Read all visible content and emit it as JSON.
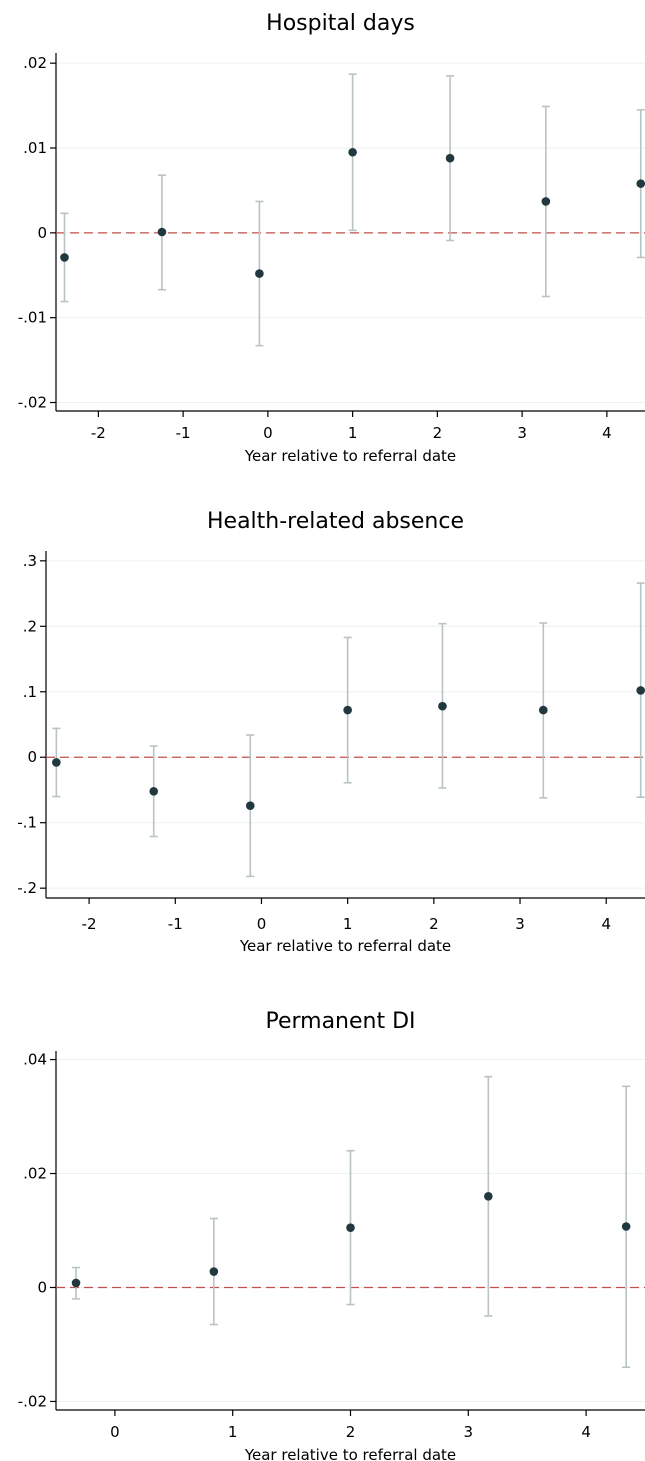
{
  "colors": {
    "point": "#22383f",
    "ci": "#b9c3c4",
    "zero_line": "#c0504d",
    "grid": "#eef1f2",
    "axis": "#000000"
  },
  "chart_data": [
    {
      "type": "scatter",
      "title": "Hospital days",
      "xlabel": "Year relative to referral date",
      "ylabel": "",
      "xlim": [
        -2.5,
        4.45
      ],
      "ylim": [
        -0.021,
        0.0212
      ],
      "xticks": [
        -2,
        -1,
        0,
        1,
        2,
        3,
        4
      ],
      "xtick_labels": [
        "-2",
        "-1",
        "0",
        "1",
        "2",
        "3",
        "4"
      ],
      "yticks": [
        -0.02,
        -0.01,
        0,
        0.01,
        0.02
      ],
      "ytick_labels": [
        "-.02",
        "-.01",
        "0",
        ".01",
        ".02"
      ],
      "grid": true,
      "zero_line": true,
      "points": [
        {
          "x": -2.4,
          "y": -0.0029,
          "lo": -0.0081,
          "hi": 0.0023
        },
        {
          "x": -1.25,
          "y": 0.0001,
          "lo": -0.0067,
          "hi": 0.0068
        },
        {
          "x": -0.1,
          "y": -0.0048,
          "lo": -0.0133,
          "hi": 0.0037
        },
        {
          "x": 1.0,
          "y": 0.0095,
          "lo": 0.0003,
          "hi": 0.0187
        },
        {
          "x": 2.15,
          "y": 0.0088,
          "lo": -0.0009,
          "hi": 0.0185
        },
        {
          "x": 3.28,
          "y": 0.0037,
          "lo": -0.0075,
          "hi": 0.0149
        },
        {
          "x": 4.4,
          "y": 0.0058,
          "lo": -0.0029,
          "hi": 0.0145
        }
      ]
    },
    {
      "type": "scatter",
      "title": "Health-related absence",
      "xlabel": "Year relative to referral date",
      "ylabel": "",
      "xlim": [
        -2.5,
        4.45
      ],
      "ylim": [
        -0.215,
        0.315
      ],
      "xticks": [
        -2,
        -1,
        0,
        1,
        2,
        3,
        4
      ],
      "xtick_labels": [
        "-2",
        "-1",
        "0",
        "1",
        "2",
        "3",
        "4"
      ],
      "yticks": [
        -0.2,
        -0.1,
        0,
        0.1,
        0.2,
        0.3
      ],
      "ytick_labels": [
        "-.2",
        "-.1",
        "0",
        ".1",
        ".2",
        ".3"
      ],
      "grid": true,
      "zero_line": true,
      "points": [
        {
          "x": -2.38,
          "y": -0.008,
          "lo": -0.06,
          "hi": 0.044
        },
        {
          "x": -1.25,
          "y": -0.052,
          "lo": -0.121,
          "hi": 0.017
        },
        {
          "x": -0.13,
          "y": -0.074,
          "lo": -0.182,
          "hi": 0.034
        },
        {
          "x": 1.0,
          "y": 0.072,
          "lo": -0.039,
          "hi": 0.183
        },
        {
          "x": 2.1,
          "y": 0.078,
          "lo": -0.047,
          "hi": 0.204
        },
        {
          "x": 3.27,
          "y": 0.072,
          "lo": -0.062,
          "hi": 0.205
        },
        {
          "x": 4.4,
          "y": 0.102,
          "lo": -0.061,
          "hi": 0.266
        }
      ]
    },
    {
      "type": "scatter",
      "title": "Permanent DI",
      "xlabel": "Year relative to referral date",
      "ylabel": "",
      "xlim": [
        -0.5,
        4.5
      ],
      "ylim": [
        -0.0215,
        0.0415
      ],
      "xticks": [
        0,
        1,
        2,
        3,
        4
      ],
      "xtick_labels": [
        "0",
        "1",
        "2",
        "3",
        "4"
      ],
      "yticks": [
        -0.02,
        0,
        0.02,
        0.04
      ],
      "ytick_labels": [
        "-.02",
        "0",
        ".02",
        ".04"
      ],
      "grid": true,
      "zero_line": true,
      "points": [
        {
          "x": -0.33,
          "y": 0.0008,
          "lo": -0.002,
          "hi": 0.0035
        },
        {
          "x": 0.84,
          "y": 0.0028,
          "lo": -0.0065,
          "hi": 0.0121
        },
        {
          "x": 2.0,
          "y": 0.0105,
          "lo": -0.003,
          "hi": 0.024
        },
        {
          "x": 3.17,
          "y": 0.016,
          "lo": -0.005,
          "hi": 0.037
        },
        {
          "x": 4.34,
          "y": 0.0107,
          "lo": -0.014,
          "hi": 0.0353
        }
      ]
    }
  ]
}
